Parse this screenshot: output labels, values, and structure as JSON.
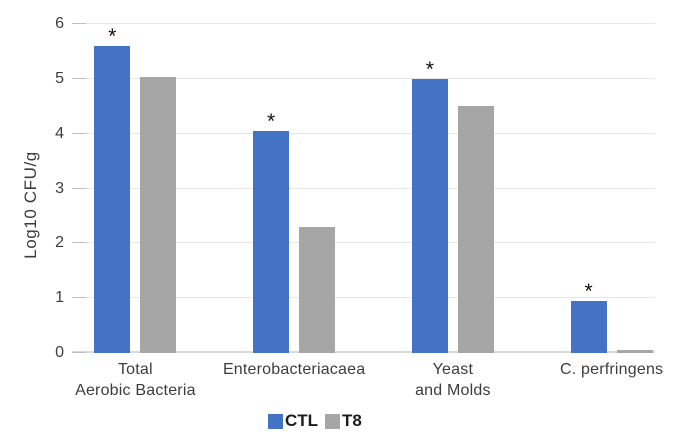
{
  "chart_data": {
    "type": "bar",
    "title": "",
    "xlabel": "",
    "ylabel": "Log10 CFU/g",
    "ylim": [
      0,
      6
    ],
    "yticks": [
      0,
      1,
      2,
      3,
      4,
      5,
      6
    ],
    "grid": true,
    "legend_position": "bottom",
    "background_color": "#ffffff",
    "gridline_color": "#e6e6e6",
    "categories": [
      "Total Aerobic Bacteria",
      "Enterobacteriacaea",
      "Yeast and Molds",
      "C. perfringens"
    ],
    "category_label_lines": [
      [
        "Total",
        "Aerobic Bacteria"
      ],
      [
        "Enterobacteriacaea"
      ],
      [
        "Yeast",
        "and Molds"
      ],
      [
        "C. perfringens"
      ]
    ],
    "series": [
      {
        "name": "CTL",
        "color": "#4472C4",
        "values": [
          5.6,
          4.05,
          5.0,
          0.95
        ]
      },
      {
        "name": "T8",
        "color": "#A6A6A6",
        "values": [
          5.03,
          2.3,
          4.5,
          0.05
        ]
      }
    ],
    "annotations": {
      "symbol": "*",
      "applies_to_series": "CTL",
      "per_category": [
        true,
        true,
        true,
        true
      ]
    }
  }
}
